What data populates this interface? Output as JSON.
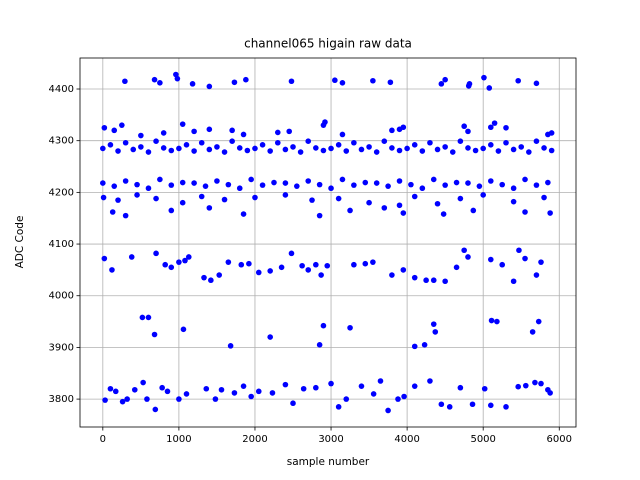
{
  "chart_data": {
    "type": "scatter",
    "title": "channel065 higain raw data",
    "xlabel": "sample number",
    "ylabel": "ADC Code",
    "color": "#0000ff",
    "grid": true,
    "xlim": [
      -300,
      6220
    ],
    "ylim": [
      3746,
      4460
    ],
    "xticks": [
      0,
      1000,
      2000,
      3000,
      4000,
      5000,
      6000
    ],
    "yticks": [
      3800,
      3900,
      4000,
      4100,
      4200,
      4300,
      4400
    ],
    "x": [
      0,
      100,
      200,
      300,
      400,
      500,
      600,
      700,
      800,
      900,
      1000,
      1100,
      1200,
      1300,
      1400,
      1500,
      1600,
      1700,
      1800,
      1900,
      2000,
      2100,
      2200,
      2300,
      2400,
      2500,
      2600,
      2700,
      2800,
      2900,
      3000,
      3100,
      3200,
      3300,
      3400,
      3500,
      3600,
      3700,
      3800,
      3900,
      4000,
      4100,
      4200,
      4300,
      4400,
      4500,
      4600,
      4700,
      4800,
      4900,
      5000,
      5100,
      5200,
      5300,
      5400,
      5500,
      5600,
      5700,
      5800,
      5900,
      20,
      150,
      250,
      500,
      800,
      1050,
      1200,
      1400,
      1700,
      1850,
      2300,
      2450,
      2900,
      2920,
      3150,
      3800,
      3900,
      3950,
      4750,
      4800,
      5100,
      5150,
      5300,
      5850,
      5900,
      290,
      680,
      750,
      960,
      980,
      1180,
      1400,
      1730,
      1880,
      2480,
      3050,
      3150,
      3550,
      3780,
      4450,
      4500,
      4810,
      4820,
      5010,
      5080,
      5460,
      5700,
      0,
      150,
      300,
      450,
      600,
      750,
      900,
      1050,
      1200,
      1350,
      1500,
      1650,
      1800,
      1950,
      2100,
      2250,
      2400,
      2550,
      2700,
      2850,
      3000,
      3150,
      3300,
      3450,
      3600,
      3750,
      3900,
      4050,
      4200,
      4350,
      4500,
      4650,
      4800,
      4950,
      5100,
      5250,
      5400,
      5550,
      5700,
      5850,
      10,
      200,
      450,
      700,
      1050,
      1300,
      1600,
      2000,
      2400,
      2750,
      3100,
      3500,
      3900,
      4100,
      4400,
      4700,
      5000,
      5400,
      5800,
      130,
      300,
      900,
      1400,
      1850,
      2850,
      3250,
      3700,
      3950,
      4480,
      4870,
      5550,
      5880,
      20,
      120,
      380,
      700,
      820,
      900,
      1000,
      1080,
      1130,
      1330,
      1420,
      1530,
      1650,
      1820,
      1920,
      2050,
      2200,
      2350,
      2480,
      2620,
      2700,
      2800,
      2870,
      2950,
      3300,
      3450,
      3550,
      3800,
      3950,
      4100,
      4250,
      4350,
      4500,
      4650,
      4750,
      4800,
      5100,
      5250,
      5400,
      5470,
      5550,
      5700,
      5760,
      520,
      600,
      680,
      1060,
      1680,
      2200,
      2850,
      2900,
      3250,
      4100,
      4230,
      4350,
      4370,
      5110,
      5180,
      5650,
      5730,
      30,
      100,
      170,
      260,
      320,
      420,
      530,
      580,
      690,
      780,
      850,
      1000,
      1100,
      1360,
      1480,
      1560,
      1730,
      1850,
      1950,
      2050,
      2230,
      2400,
      2500,
      2640,
      2800,
      3000,
      3100,
      3200,
      3400,
      3560,
      3650,
      3750,
      3880,
      3960,
      4100,
      4300,
      4450,
      4560,
      4700,
      4860,
      5020,
      5100,
      5300,
      5460,
      5560,
      5680,
      5760,
      5850,
      5880
    ],
    "y": [
      4285,
      4292,
      4280,
      4296,
      4283,
      4288,
      4278,
      4299,
      4286,
      4281,
      4285,
      4292,
      4280,
      4296,
      4283,
      4288,
      4278,
      4299,
      4286,
      4281,
      4285,
      4292,
      4280,
      4296,
      4283,
      4288,
      4278,
      4299,
      4286,
      4281,
      4285,
      4292,
      4280,
      4296,
      4283,
      4288,
      4278,
      4299,
      4286,
      4281,
      4285,
      4292,
      4280,
      4296,
      4283,
      4288,
      4278,
      4299,
      4286,
      4281,
      4285,
      4292,
      4280,
      4296,
      4283,
      4288,
      4278,
      4299,
      4286,
      4281,
      4325,
      4320,
      4330,
      4310,
      4315,
      4332,
      4318,
      4322,
      4320,
      4312,
      4316,
      4318,
      4330,
      4336,
      4312,
      4320,
      4322,
      4326,
      4328,
      4318,
      4326,
      4334,
      4325,
      4312,
      4315,
      4415,
      4418,
      4412,
      4428,
      4420,
      4410,
      4405,
      4413,
      4418,
      4415,
      4417,
      4412,
      4416,
      4413,
      4410,
      4418,
      4406,
      4410,
      4422,
      4402,
      4416,
      4411,
      4218,
      4212,
      4222,
      4215,
      4208,
      4225,
      4214,
      4219,
      4218,
      4212,
      4222,
      4215,
      4208,
      4225,
      4214,
      4219,
      4218,
      4212,
      4222,
      4215,
      4208,
      4225,
      4214,
      4219,
      4218,
      4212,
      4222,
      4215,
      4208,
      4225,
      4214,
      4219,
      4218,
      4212,
      4222,
      4215,
      4208,
      4225,
      4214,
      4219,
      4190,
      4185,
      4195,
      4188,
      4180,
      4192,
      4186,
      4190,
      4195,
      4185,
      4188,
      4180,
      4175,
      4192,
      4178,
      4188,
      4195,
      4182,
      4190,
      4162,
      4155,
      4165,
      4170,
      4158,
      4155,
      4165,
      4170,
      4160,
      4158,
      4165,
      4162,
      4160,
      4072,
      4050,
      4075,
      4082,
      4060,
      4055,
      4065,
      4068,
      4075,
      4035,
      4030,
      4040,
      4065,
      4060,
      4062,
      4045,
      4048,
      4055,
      4082,
      4058,
      4050,
      4060,
      4040,
      4058,
      4060,
      4062,
      4065,
      4040,
      4050,
      4035,
      4030,
      4030,
      4028,
      4055,
      4088,
      4075,
      4070,
      4060,
      4028,
      4088,
      4072,
      4040,
      4065,
      3958,
      3958,
      3925,
      3935,
      3903,
      3920,
      3905,
      3942,
      3938,
      3902,
      3905,
      3945,
      3930,
      3952,
      3950,
      3930,
      3950,
      3798,
      3820,
      3815,
      3795,
      3800,
      3818,
      3832,
      3800,
      3780,
      3822,
      3815,
      3800,
      3810,
      3820,
      3800,
      3818,
      3812,
      3825,
      3805,
      3815,
      3812,
      3828,
      3792,
      3820,
      3822,
      3830,
      3785,
      3800,
      3825,
      3810,
      3835,
      3778,
      3800,
      3805,
      3825,
      3835,
      3790,
      3785,
      3822,
      3790,
      3820,
      3788,
      3785,
      3824,
      3826,
      3832,
      3830,
      3818,
      3812
    ]
  }
}
